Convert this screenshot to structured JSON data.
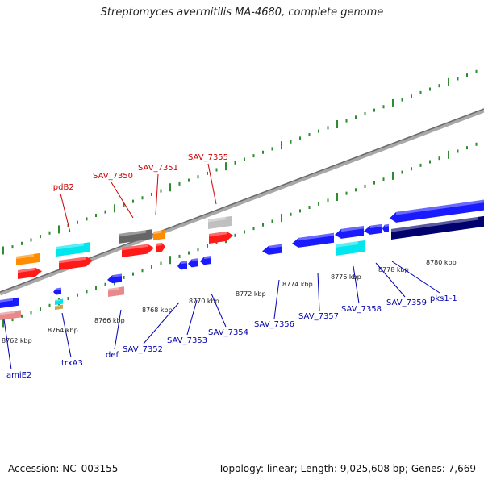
{
  "title": "Streptomyces avermitilis MA-4680, complete genome",
  "footer": {
    "accession": "Accession: NC_003155",
    "summary": "Topology: linear; Length: 9,025,608 bp; Genes: 7,669"
  },
  "colors": {
    "backbone": "#8a8a8a",
    "tick_marks": "#2e8b2e",
    "label_top": "#cc0000",
    "label_bottom": "#0000b0",
    "gene_red": "#ff1a1a",
    "gene_pink": "#e88a8a",
    "gene_orange": "#ff8c00",
    "gene_cyan": "#00e5ee",
    "gene_gray": "#666666",
    "gene_lightgray": "#c0c0c0",
    "gene_blue": "#1a1aff",
    "gene_navy": "#00006e"
  },
  "scale_ticks_kbp": [
    "8762 kbp",
    "8764 kbp",
    "8766 kbp",
    "8768 kbp",
    "8770 kbp",
    "8772 kbp",
    "8774 kbp",
    "8776 kbp",
    "8778 kbp",
    "8780 kbp"
  ],
  "labels_top": [
    "lpdB2",
    "SAV_7350",
    "SAV_7351",
    "SAV_7355"
  ],
  "labels_bottom": [
    "amiE2",
    "trxA3",
    "def",
    "SAV_7352",
    "SAV_7353",
    "SAV_7354",
    "SAV_7356",
    "SAV_7357",
    "SAV_7358",
    "SAV_7359",
    "pks1-1"
  ]
}
